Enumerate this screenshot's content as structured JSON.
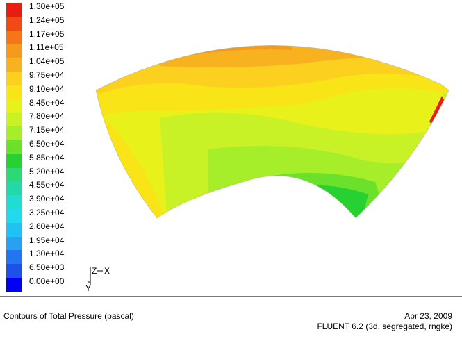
{
  "legend": {
    "colors": [
      "#e81c10",
      "#f24a14",
      "#f57518",
      "#f59a1c",
      "#f8b21f",
      "#fbd01e",
      "#f9e517",
      "#e8f21a",
      "#c8f226",
      "#a6ee2a",
      "#6ce12c",
      "#28d132",
      "#2cd978",
      "#23d9a8",
      "#20dcd2",
      "#22d9ee",
      "#1fc2f2",
      "#2aa0f2",
      "#2276ef",
      "#1e50ea",
      "#0000f5"
    ],
    "labels": [
      "1.30e+05",
      "1.24e+05",
      "1.17e+05",
      "1.11e+05",
      "1.04e+05",
      "9.75e+04",
      "9.10e+04",
      "8.45e+04",
      "7.80e+04",
      "7.15e+04",
      "6.50e+04",
      "5.85e+04",
      "5.20e+04",
      "4.55e+04",
      "3.90e+04",
      "3.25e+04",
      "2.60e+04",
      "1.95e+04",
      "1.30e+04",
      "6.50e+03",
      "0.00e+00"
    ]
  },
  "axes": {
    "x": "X",
    "y": "Y",
    "z": "Z"
  },
  "footer": {
    "title": "Contours of Total Pressure (pascal)",
    "date": "Apr 23, 2009",
    "solver": "FLUENT 6.2 (3d, segregated, rngke)"
  }
}
